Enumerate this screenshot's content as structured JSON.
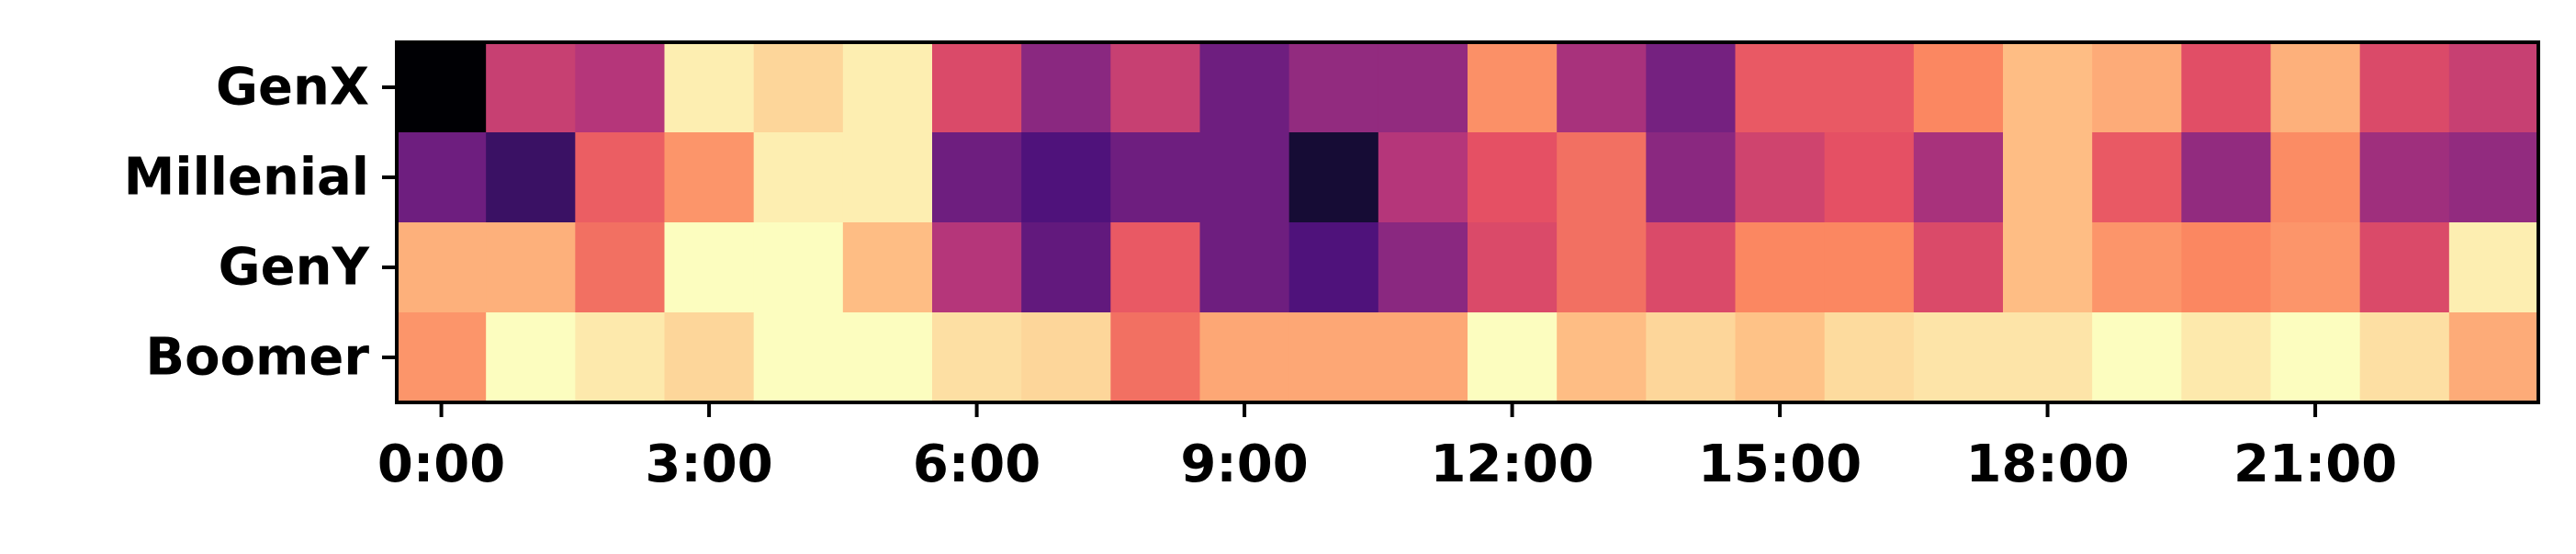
{
  "chart_data": {
    "type": "heatmap",
    "colormap": "magma",
    "value_range": [
      0,
      1
    ],
    "xlabel": "",
    "ylabel": "",
    "x_tick_labels": [
      "0:00",
      "3:00",
      "6:00",
      "9:00",
      "12:00",
      "15:00",
      "18:00",
      "21:00"
    ],
    "x_tick_hours": [
      0,
      3,
      6,
      9,
      12,
      15,
      18,
      21
    ],
    "columns": [
      "0",
      "1",
      "2",
      "3",
      "4",
      "5",
      "6",
      "7",
      "8",
      "9",
      "10",
      "11",
      "12",
      "13",
      "14",
      "15",
      "16",
      "17",
      "18",
      "19",
      "20",
      "21",
      "22",
      "23"
    ],
    "rows": [
      "GenX",
      "Millenial",
      "GenY",
      "Boomer"
    ],
    "values": [
      [
        0.0,
        0.55,
        0.5,
        0.97,
        0.92,
        0.97,
        0.6,
        0.4,
        0.55,
        0.33,
        0.42,
        0.42,
        0.77,
        0.47,
        0.35,
        0.65,
        0.65,
        0.75,
        0.87,
        0.83,
        0.62,
        0.84,
        0.6,
        0.55
      ],
      [
        0.33,
        0.2,
        0.66,
        0.78,
        0.97,
        0.97,
        0.33,
        0.25,
        0.33,
        0.33,
        0.1,
        0.5,
        0.63,
        0.7,
        0.4,
        0.57,
        0.63,
        0.47,
        0.87,
        0.65,
        0.42,
        0.76,
        0.45,
        0.42
      ],
      [
        0.84,
        0.84,
        0.7,
        1.0,
        1.0,
        0.87,
        0.5,
        0.3,
        0.65,
        0.33,
        0.25,
        0.4,
        0.6,
        0.7,
        0.6,
        0.75,
        0.75,
        0.6,
        0.87,
        0.78,
        0.75,
        0.78,
        0.6,
        0.97
      ],
      [
        0.78,
        1.0,
        0.96,
        0.92,
        1.0,
        1.0,
        0.94,
        0.92,
        0.7,
        0.82,
        0.82,
        0.82,
        1.0,
        0.87,
        0.92,
        0.88,
        0.93,
        0.95,
        0.95,
        1.0,
        0.96,
        1.0,
        0.94,
        0.83
      ]
    ]
  }
}
